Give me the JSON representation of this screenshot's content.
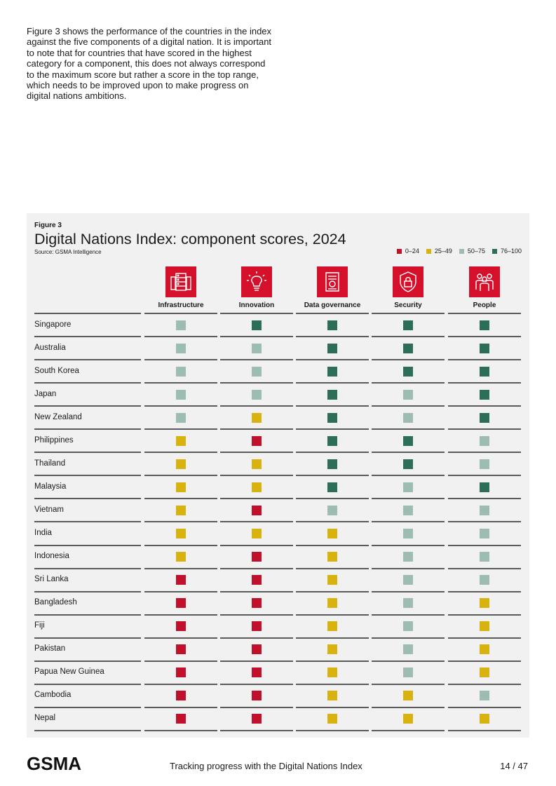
{
  "intro_text": "Figure 3 shows the performance of the countries in the index against the five components of a digital nation. It is important to note that for countries that have scored in the highest category for a component, this does not always correspond to the maximum score but rather a score in the top range, which needs to be improved upon to make progress on digital nations ambitions.",
  "figure": {
    "label": "Figure 3",
    "title": "Digital Nations Index: component scores, 2024",
    "source": "Source: GSMA Intelligence"
  },
  "legend": [
    {
      "label": "0–24",
      "color": "#c0102c"
    },
    {
      "label": "25–49",
      "color": "#d8b30f"
    },
    {
      "label": "50–75",
      "color": "#9dbdb3"
    },
    {
      "label": "76–100",
      "color": "#2d6e58"
    }
  ],
  "columns": [
    {
      "label": "Infrastructure",
      "icon": "server-icon"
    },
    {
      "label": "Innovation",
      "icon": "lightbulb-icon"
    },
    {
      "label": "Data governance",
      "icon": "document-certificate-icon"
    },
    {
      "label": "Security",
      "icon": "shield-lock-icon"
    },
    {
      "label": "People",
      "icon": "people-icon"
    }
  ],
  "rows": [
    {
      "country": "Singapore",
      "scores": [
        2,
        3,
        3,
        3,
        3
      ]
    },
    {
      "country": "Australia",
      "scores": [
        2,
        2,
        3,
        3,
        3
      ]
    },
    {
      "country": "South Korea",
      "scores": [
        2,
        2,
        3,
        3,
        3
      ]
    },
    {
      "country": "Japan",
      "scores": [
        2,
        2,
        3,
        2,
        3
      ]
    },
    {
      "country": "New Zealand",
      "scores": [
        2,
        1,
        3,
        2,
        3
      ]
    },
    {
      "country": "Philippines",
      "scores": [
        1,
        0,
        3,
        3,
        2
      ]
    },
    {
      "country": "Thailand",
      "scores": [
        1,
        1,
        3,
        3,
        2
      ]
    },
    {
      "country": "Malaysia",
      "scores": [
        1,
        1,
        3,
        2,
        3
      ]
    },
    {
      "country": "Vietnam",
      "scores": [
        1,
        0,
        2,
        2,
        2
      ]
    },
    {
      "country": "India",
      "scores": [
        1,
        1,
        1,
        2,
        2
      ]
    },
    {
      "country": "Indonesia",
      "scores": [
        1,
        0,
        1,
        2,
        2
      ]
    },
    {
      "country": "Sri Lanka",
      "scores": [
        0,
        0,
        1,
        2,
        2
      ]
    },
    {
      "country": "Bangladesh",
      "scores": [
        0,
        0,
        1,
        2,
        1
      ]
    },
    {
      "country": "Fiji",
      "scores": [
        0,
        0,
        1,
        2,
        1
      ]
    },
    {
      "country": "Pakistan",
      "scores": [
        0,
        0,
        1,
        2,
        1
      ]
    },
    {
      "country": "Papua New Guinea",
      "scores": [
        0,
        0,
        1,
        2,
        1
      ]
    },
    {
      "country": "Cambodia",
      "scores": [
        0,
        0,
        1,
        1,
        2
      ]
    },
    {
      "country": "Nepal",
      "scores": [
        0,
        0,
        1,
        1,
        1
      ]
    }
  ],
  "footer": {
    "logo": "GSMA",
    "title": "Tracking progress with the Digital Nations Index",
    "page": "14 / 47"
  }
}
